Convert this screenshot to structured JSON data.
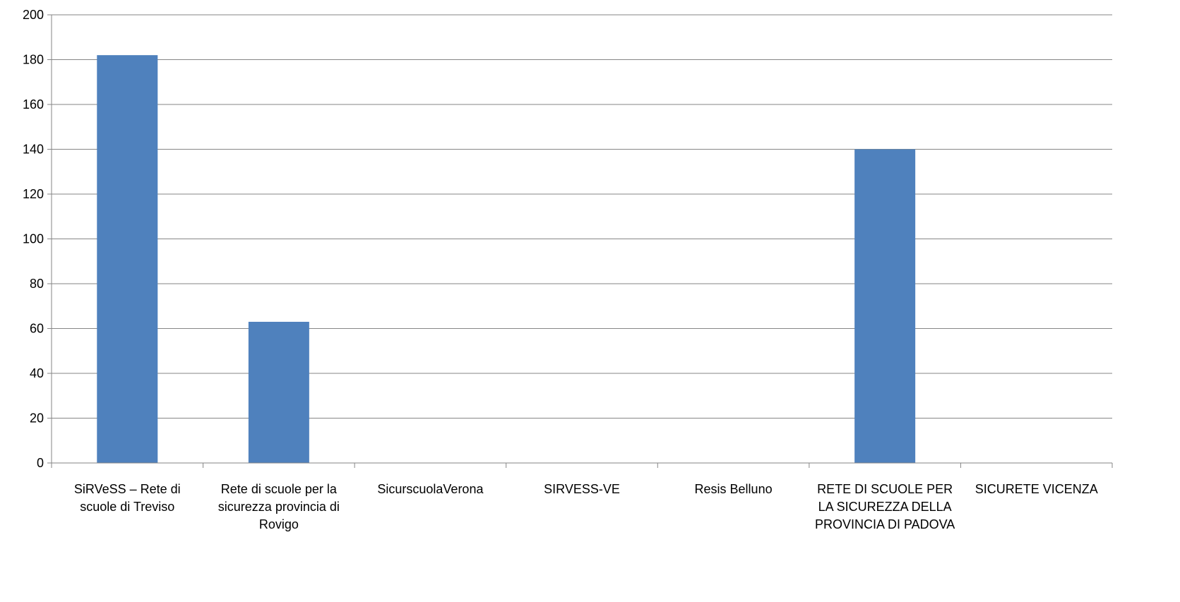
{
  "chart_data": {
    "type": "bar",
    "categories": [
      "SiRVeSS – Rete di scuole di Treviso",
      "Rete di scuole per la sicurezza provincia di Rovigo",
      "SicurscuolaVerona",
      "SIRVESS-VE",
      "Resis Belluno",
      "RETE DI SCUOLE PER LA SICUREZZA DELLA PROVINCIA DI PADOVA",
      "SICURETE VICENZA"
    ],
    "values": [
      182,
      63,
      0,
      0,
      0,
      140,
      0
    ],
    "title": "",
    "xlabel": "",
    "ylabel": "",
    "ylim": [
      0,
      200
    ],
    "yticks": [
      0,
      20,
      40,
      60,
      80,
      100,
      120,
      140,
      160,
      180,
      200
    ],
    "grid": true,
    "legend": "none",
    "bar_color": "#4F81BD",
    "grid_color": "#868686"
  }
}
